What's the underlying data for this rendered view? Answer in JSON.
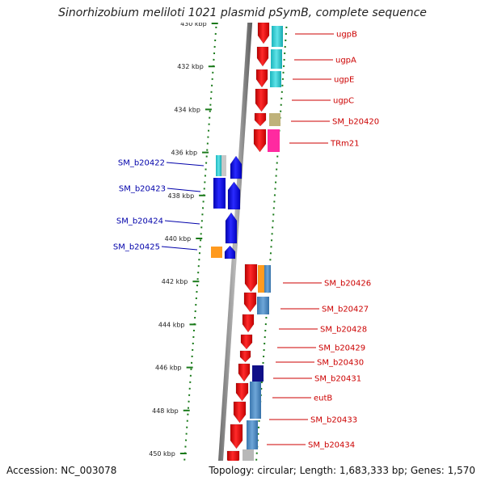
{
  "title": "Sinorhizobium meliloti 1021 plasmid pSymB, complete sequence",
  "accession_label": "Accession: NC_003078",
  "topology_label": "Topology: circular; Length: 1,683,333 bp; Genes: 1,570",
  "colors": {
    "forward_label": "#cc0000",
    "reverse_label": "#0000aa",
    "gene_forward": "#ee0000",
    "gene_reverse": "#0000ee",
    "tick": "#1a7a1a"
  },
  "scale": {
    "ticks": [
      {
        "kbp": 430,
        "label": "430 kbp"
      },
      {
        "kbp": 432,
        "label": "432 kbp"
      },
      {
        "kbp": 434,
        "label": "434 kbp"
      },
      {
        "kbp": 436,
        "label": "436 kbp"
      },
      {
        "kbp": 438,
        "label": "438 kbp"
      },
      {
        "kbp": 440,
        "label": "440 kbp"
      },
      {
        "kbp": 442,
        "label": "442 kbp"
      },
      {
        "kbp": 444,
        "label": "444 kbp"
      },
      {
        "kbp": 446,
        "label": "446 kbp"
      },
      {
        "kbp": 448,
        "label": "448 kbp"
      },
      {
        "kbp": 450,
        "label": "450 kbp"
      }
    ]
  },
  "forward_genes": [
    {
      "name": "ugpB"
    },
    {
      "name": "ugpA"
    },
    {
      "name": "ugpE"
    },
    {
      "name": "ugpC"
    },
    {
      "name": "SM_b20420"
    },
    {
      "name": "TRm21"
    },
    {
      "name": "SM_b20426"
    },
    {
      "name": "SM_b20427"
    },
    {
      "name": "SM_b20428"
    },
    {
      "name": "SM_b20429"
    },
    {
      "name": "SM_b20430"
    },
    {
      "name": "SM_b20431"
    },
    {
      "name": "eutB"
    },
    {
      "name": "SM_b20433"
    },
    {
      "name": "SM_b20434"
    }
  ],
  "reverse_genes": [
    {
      "name": "SM_b20422"
    },
    {
      "name": "SM_b20423"
    },
    {
      "name": "SM_b20424"
    },
    {
      "name": "SM_b20425"
    }
  ]
}
